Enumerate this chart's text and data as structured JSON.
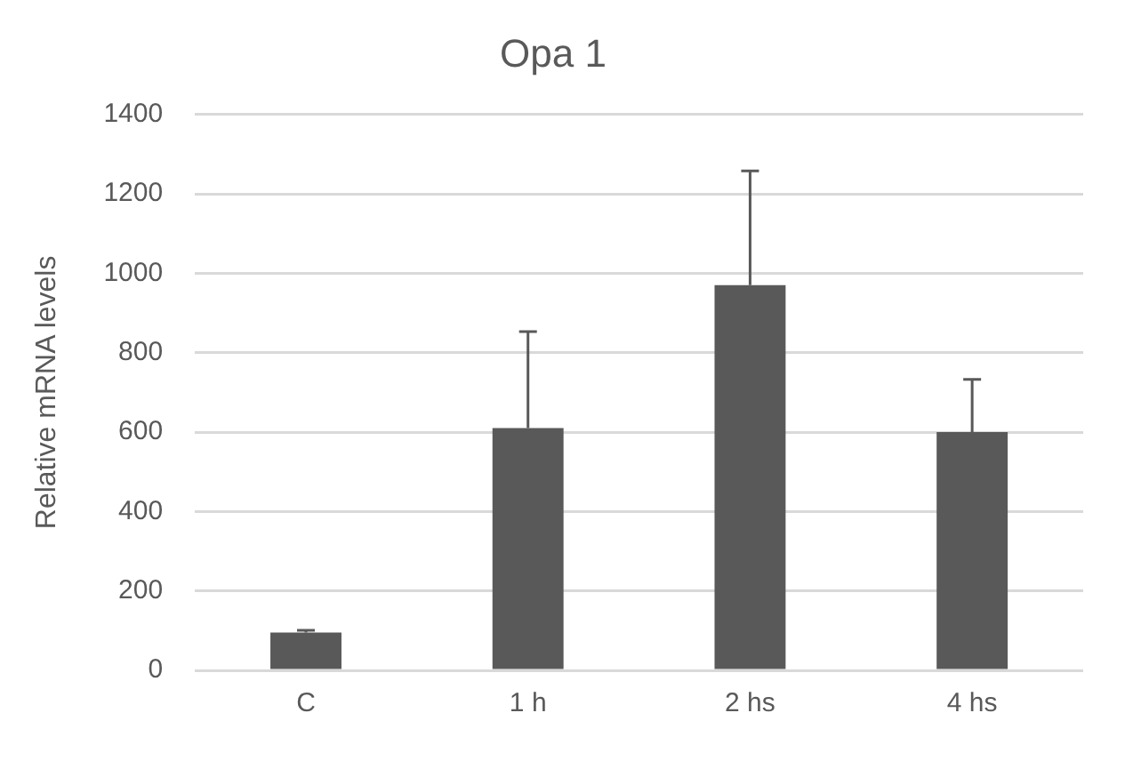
{
  "chart_data": {
    "type": "bar",
    "title": "Opa 1",
    "ylabel": "Relative mRNA levels",
    "categories": [
      "C",
      "1 h",
      "2 hs",
      "4 hs"
    ],
    "values": [
      95,
      610,
      970,
      600
    ],
    "errors": [
      [
        95,
        101
      ],
      [
        610,
        853
      ],
      [
        970,
        1258
      ],
      [
        600,
        733
      ]
    ],
    "color": "#595959",
    "ylim": [
      0,
      1400
    ],
    "yticks": [
      0,
      200,
      400,
      600,
      800,
      1000,
      1200,
      1400
    ],
    "grid": "y",
    "legend": false
  }
}
